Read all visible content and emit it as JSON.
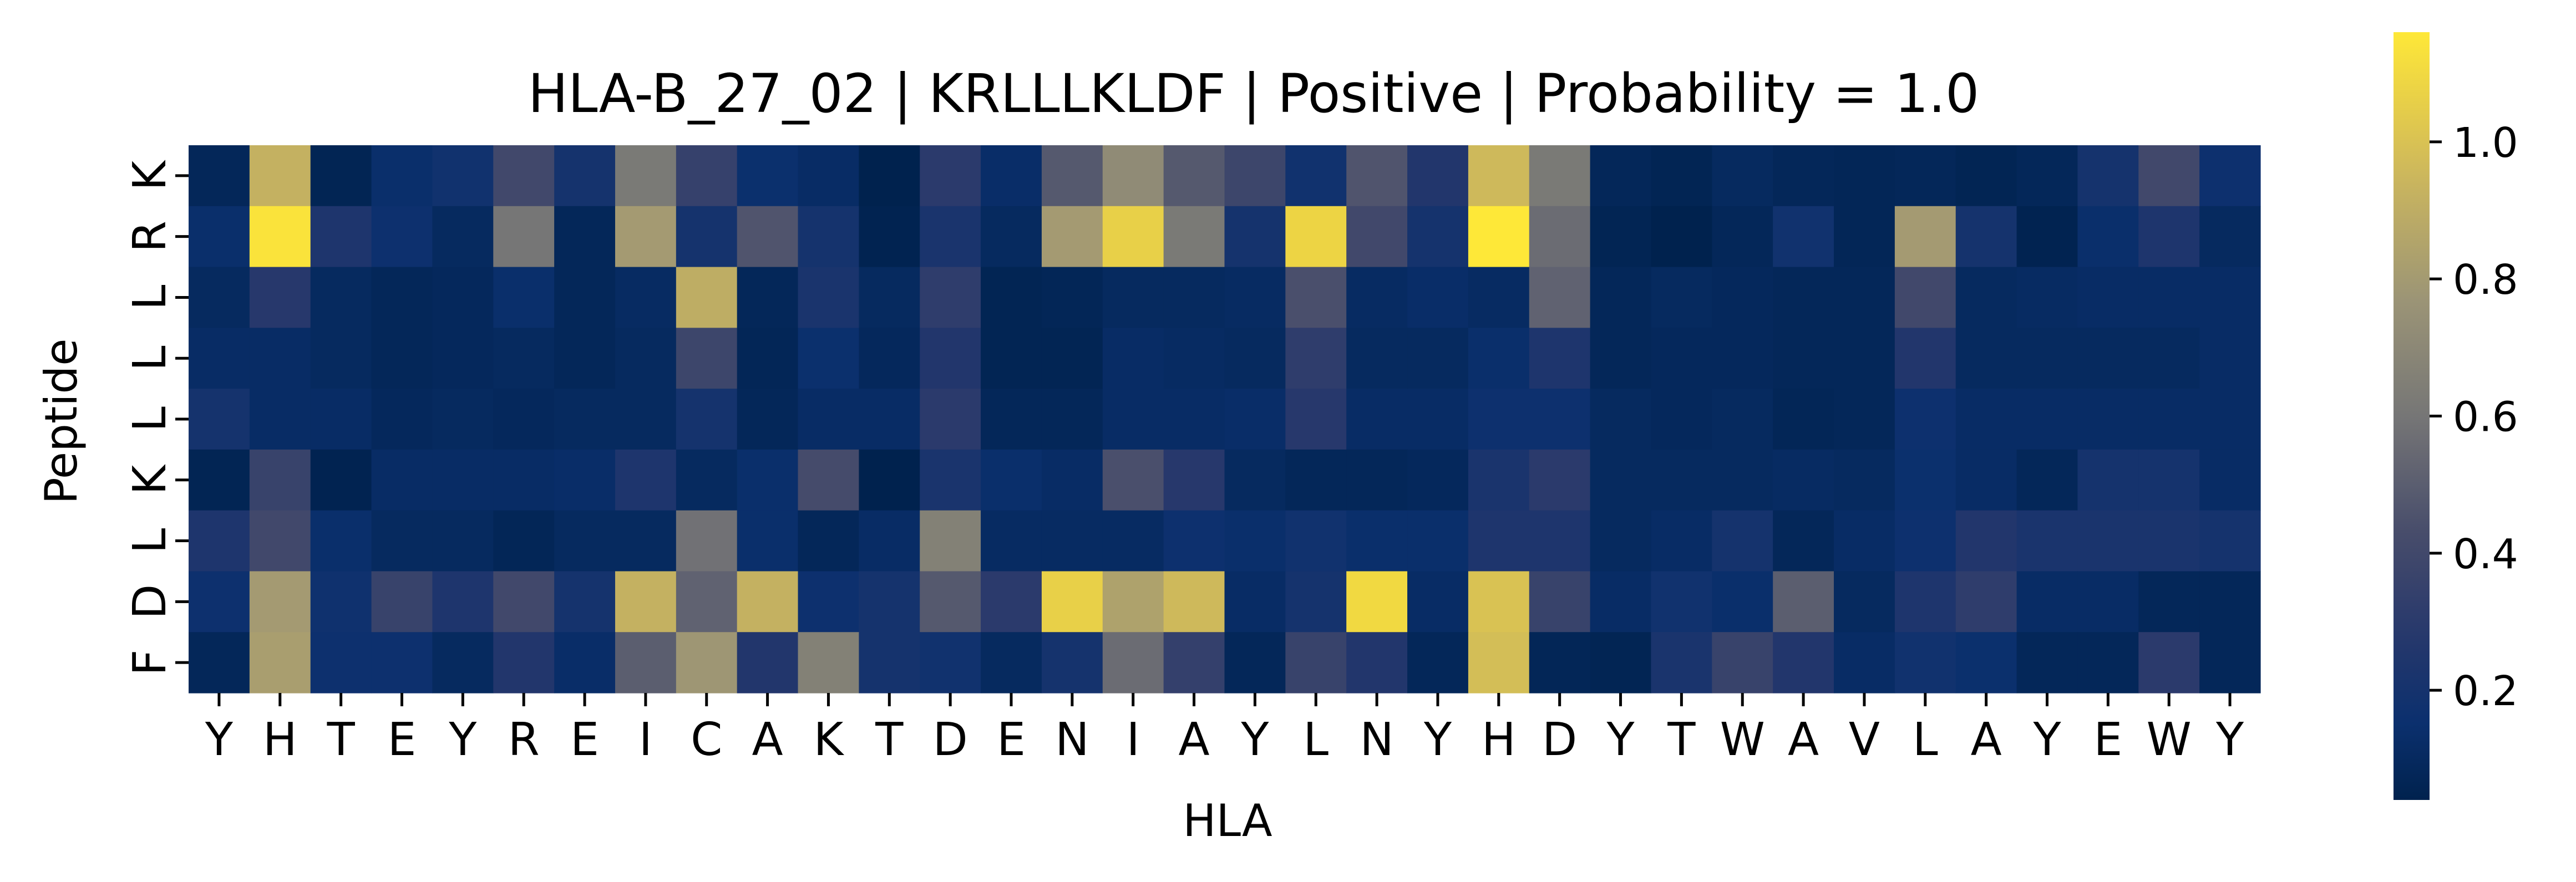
{
  "chart_data": {
    "type": "heatmap",
    "title": "HLA-B_27_02 | KRLLLKLDF | Positive | Probability = 1.0",
    "xlabel": "HLA",
    "ylabel": "Peptide",
    "x_categories": [
      "Y",
      "H",
      "T",
      "E",
      "Y",
      "R",
      "E",
      "I",
      "C",
      "A",
      "K",
      "T",
      "D",
      "E",
      "N",
      "I",
      "A",
      "Y",
      "L",
      "N",
      "Y",
      "H",
      "D",
      "Y",
      "T",
      "W",
      "A",
      "V",
      "L",
      "A",
      "Y",
      "E",
      "W",
      "Y"
    ],
    "y_categories": [
      "K",
      "R",
      "L",
      "L",
      "L",
      "K",
      "L",
      "D",
      "F"
    ],
    "values": [
      [
        0.08,
        0.92,
        0.06,
        0.14,
        0.18,
        0.4,
        0.2,
        0.62,
        0.35,
        0.15,
        0.12,
        0.03,
        0.3,
        0.13,
        0.48,
        0.72,
        0.48,
        0.38,
        0.18,
        0.46,
        0.26,
        0.96,
        0.62,
        0.08,
        0.06,
        0.1,
        0.08,
        0.07,
        0.08,
        0.06,
        0.08,
        0.2,
        0.4,
        0.16
      ],
      [
        0.14,
        1.14,
        0.24,
        0.16,
        0.1,
        0.6,
        0.08,
        0.8,
        0.2,
        0.46,
        0.2,
        0.05,
        0.22,
        0.1,
        0.8,
        1.06,
        0.62,
        0.2,
        1.08,
        0.4,
        0.2,
        1.16,
        0.56,
        0.06,
        0.03,
        0.08,
        0.18,
        0.07,
        0.8,
        0.2,
        0.05,
        0.14,
        0.24,
        0.1
      ],
      [
        0.1,
        0.28,
        0.1,
        0.08,
        0.09,
        0.14,
        0.08,
        0.11,
        0.9,
        0.08,
        0.22,
        0.1,
        0.32,
        0.06,
        0.07,
        0.1,
        0.1,
        0.11,
        0.44,
        0.11,
        0.13,
        0.11,
        0.52,
        0.08,
        0.1,
        0.09,
        0.08,
        0.08,
        0.4,
        0.1,
        0.11,
        0.12,
        0.12,
        0.12
      ],
      [
        0.12,
        0.12,
        0.1,
        0.08,
        0.09,
        0.1,
        0.08,
        0.1,
        0.38,
        0.07,
        0.15,
        0.09,
        0.26,
        0.06,
        0.06,
        0.12,
        0.11,
        0.1,
        0.32,
        0.1,
        0.1,
        0.14,
        0.24,
        0.08,
        0.09,
        0.09,
        0.08,
        0.08,
        0.26,
        0.1,
        0.1,
        0.1,
        0.1,
        0.12
      ],
      [
        0.2,
        0.12,
        0.12,
        0.09,
        0.1,
        0.09,
        0.1,
        0.1,
        0.2,
        0.08,
        0.12,
        0.12,
        0.3,
        0.08,
        0.08,
        0.12,
        0.12,
        0.13,
        0.28,
        0.12,
        0.12,
        0.16,
        0.16,
        0.1,
        0.09,
        0.1,
        0.07,
        0.08,
        0.16,
        0.12,
        0.12,
        0.12,
        0.12,
        0.12
      ],
      [
        0.06,
        0.36,
        0.05,
        0.12,
        0.12,
        0.12,
        0.13,
        0.24,
        0.1,
        0.14,
        0.42,
        0.03,
        0.22,
        0.14,
        0.12,
        0.44,
        0.28,
        0.1,
        0.08,
        0.08,
        0.09,
        0.22,
        0.3,
        0.1,
        0.1,
        0.1,
        0.11,
        0.1,
        0.15,
        0.12,
        0.08,
        0.2,
        0.2,
        0.12
      ],
      [
        0.24,
        0.4,
        0.14,
        0.1,
        0.1,
        0.07,
        0.1,
        0.1,
        0.58,
        0.14,
        0.08,
        0.12,
        0.66,
        0.11,
        0.11,
        0.11,
        0.16,
        0.14,
        0.18,
        0.14,
        0.14,
        0.24,
        0.24,
        0.1,
        0.12,
        0.2,
        0.08,
        0.12,
        0.16,
        0.26,
        0.22,
        0.22,
        0.22,
        0.2
      ],
      [
        0.16,
        0.8,
        0.17,
        0.36,
        0.24,
        0.4,
        0.2,
        0.92,
        0.52,
        0.92,
        0.16,
        0.2,
        0.48,
        0.3,
        1.06,
        0.84,
        0.96,
        0.12,
        0.2,
        1.1,
        0.12,
        1.0,
        0.36,
        0.12,
        0.18,
        0.14,
        0.5,
        0.1,
        0.24,
        0.32,
        0.12,
        0.12,
        0.08,
        0.08
      ],
      [
        0.08,
        0.82,
        0.16,
        0.16,
        0.1,
        0.26,
        0.13,
        0.5,
        0.78,
        0.26,
        0.66,
        0.2,
        0.18,
        0.1,
        0.2,
        0.56,
        0.34,
        0.08,
        0.36,
        0.26,
        0.08,
        0.98,
        0.07,
        0.06,
        0.22,
        0.36,
        0.26,
        0.12,
        0.18,
        0.15,
        0.08,
        0.08,
        0.3,
        0.08
      ]
    ],
    "colorscale": "cividis",
    "vmin": 0.04,
    "vmax": 1.16,
    "colorbar_ticks": [
      "0.2",
      "0.4",
      "0.6",
      "0.8",
      "1.0"
    ],
    "colorbar_tick_values": [
      0.2,
      0.4,
      0.6,
      0.8,
      1.0
    ],
    "grid": false,
    "legend": "colorbar-right"
  }
}
